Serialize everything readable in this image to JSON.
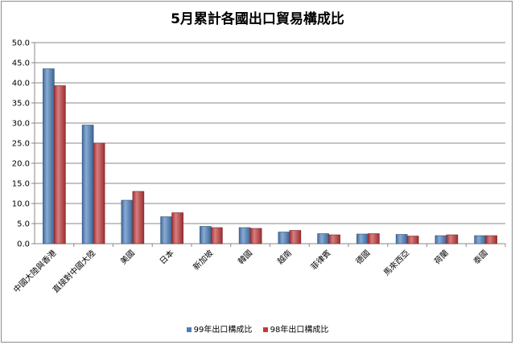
{
  "chart_data": {
    "type": "bar",
    "title": "5月累計各國出口貿易構成比",
    "categories": [
      "中國大陸與香港",
      "直接對中國大陸",
      "美國",
      "日本",
      "新加坡",
      "韓國",
      "越南",
      "菲律賓",
      "德國",
      "馬來西亞",
      "荷蘭",
      "泰國"
    ],
    "series": [
      {
        "name": "99年出口構成比",
        "color": "#4a7ebb",
        "values": [
          43.5,
          29.5,
          10.8,
          6.7,
          4.3,
          4.0,
          2.9,
          2.5,
          2.4,
          2.3,
          2.0,
          2.0
        ]
      },
      {
        "name": "98年出口構成比",
        "color": "#c0393b",
        "values": [
          39.3,
          25.0,
          13.0,
          7.7,
          4.0,
          3.8,
          3.3,
          2.2,
          2.5,
          1.9,
          2.2,
          2.0
        ]
      }
    ],
    "ylim": [
      0,
      50
    ],
    "yticks": [
      "0.0",
      "5.0",
      "10.0",
      "15.0",
      "20.0",
      "25.0",
      "30.0",
      "35.0",
      "40.0",
      "45.0",
      "50.0"
    ],
    "grid": true,
    "legend_position": "bottom"
  }
}
